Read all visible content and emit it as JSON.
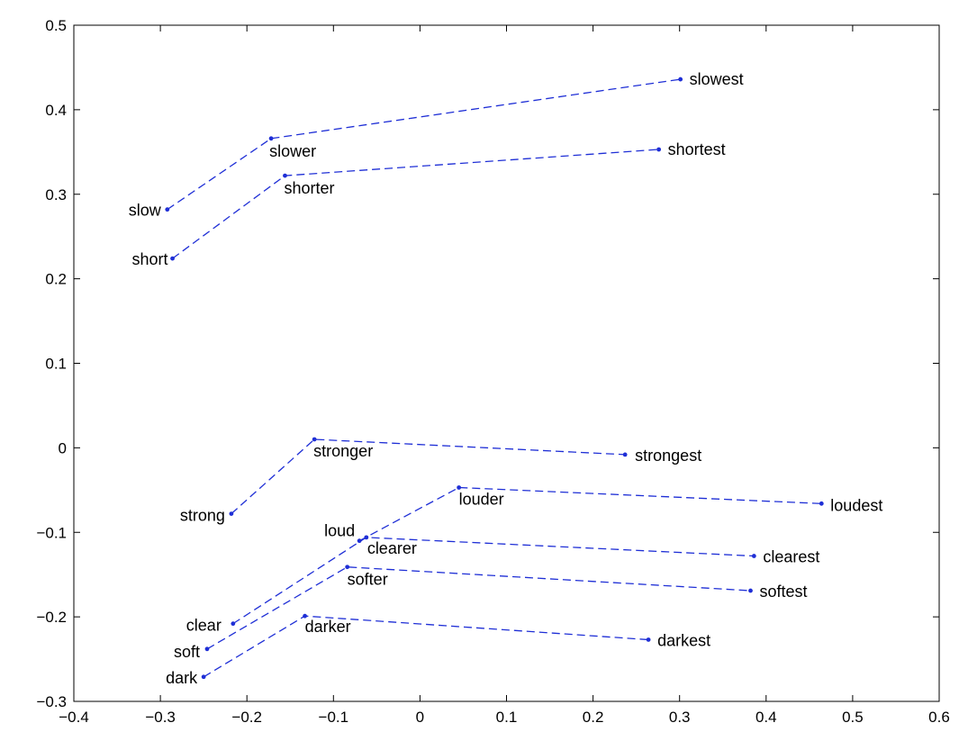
{
  "chart_data": {
    "type": "scatter",
    "title": "",
    "xlabel": "",
    "ylabel": "",
    "xlim": [
      -0.4,
      0.6
    ],
    "ylim": [
      -0.3,
      0.5
    ],
    "xticks": [
      "−0.4",
      "−0.3",
      "−0.2",
      "−0.1",
      "0",
      "0.1",
      "0.2",
      "0.3",
      "0.4",
      "0.5",
      "0.6"
    ],
    "yticks": [
      "−0.3",
      "−0.2",
      "−0.1",
      "0",
      "0.1",
      "0.2",
      "0.3",
      "0.4",
      "0.5"
    ],
    "grid": false,
    "line_style": "dashed",
    "color": "#1f2fd6",
    "series": [
      {
        "points": [
          {
            "label": "slow",
            "x": -0.292,
            "y": 0.282
          },
          {
            "label": "slower",
            "x": -0.172,
            "y": 0.366
          },
          {
            "label": "slowest",
            "x": 0.301,
            "y": 0.436
          }
        ]
      },
      {
        "points": [
          {
            "label": "short",
            "x": -0.286,
            "y": 0.224
          },
          {
            "label": "shorter",
            "x": -0.156,
            "y": 0.322
          },
          {
            "label": "shortest",
            "x": 0.276,
            "y": 0.353
          }
        ]
      },
      {
        "points": [
          {
            "label": "strong",
            "x": -0.218,
            "y": -0.078
          },
          {
            "label": "stronger",
            "x": -0.122,
            "y": 0.01
          },
          {
            "label": "strongest",
            "x": 0.237,
            "y": -0.008
          }
        ]
      },
      {
        "points": [
          {
            "label": "loud",
            "x": -0.07,
            "y": -0.11
          },
          {
            "label": "louder",
            "x": 0.045,
            "y": -0.047
          },
          {
            "label": "loudest",
            "x": 0.464,
            "y": -0.066
          }
        ]
      },
      {
        "points": [
          {
            "label": "clear",
            "x": -0.216,
            "y": -0.208
          },
          {
            "label": "clearer",
            "x": -0.062,
            "y": -0.106
          },
          {
            "label": "clearest",
            "x": 0.386,
            "y": -0.128
          }
        ]
      },
      {
        "points": [
          {
            "label": "soft",
            "x": -0.246,
            "y": -0.238
          },
          {
            "label": "softer",
            "x": -0.084,
            "y": -0.141
          },
          {
            "label": "softest",
            "x": 0.382,
            "y": -0.169
          }
        ]
      },
      {
        "points": [
          {
            "label": "dark",
            "x": -0.25,
            "y": -0.271
          },
          {
            "label": "darker",
            "x": -0.133,
            "y": -0.199
          },
          {
            "label": "darkest",
            "x": 0.264,
            "y": -0.227
          }
        ]
      }
    ]
  }
}
